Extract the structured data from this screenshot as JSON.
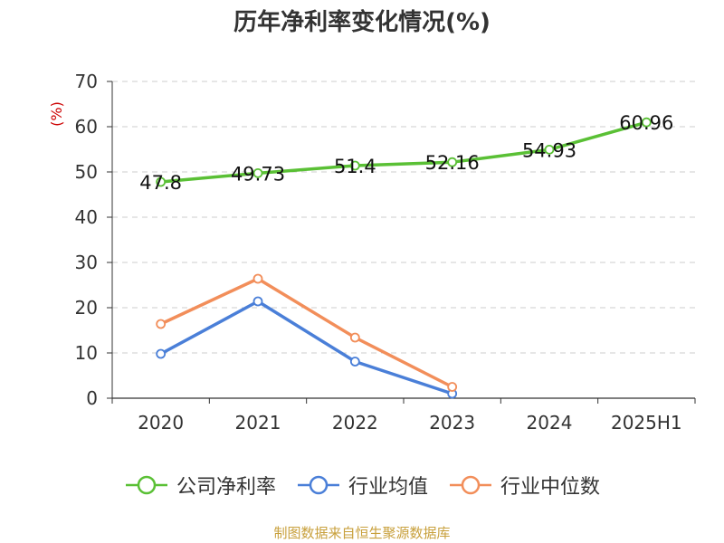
{
  "chart_data": {
    "type": "line",
    "title": "历年净利率变化情况(%)",
    "ylabel": "(%)",
    "xlabel": "",
    "categories": [
      "2020",
      "2021",
      "2022",
      "2023",
      "2024",
      "2025H1"
    ],
    "ylim": [
      0,
      70
    ],
    "yticks": [
      0,
      10,
      20,
      30,
      40,
      50,
      60,
      70
    ],
    "grid": true,
    "legend_position": "bottom",
    "series": [
      {
        "name": "公司净利率",
        "color": "#5ac035",
        "values": [
          47.8,
          49.73,
          51.4,
          52.16,
          54.93,
          60.96
        ],
        "labels": [
          "47.8",
          "49.73",
          "51.4",
          "52.16",
          "54.93",
          "60.96"
        ]
      },
      {
        "name": "行业均值",
        "color": "#4a7fd8",
        "values": [
          9.8,
          21.4,
          8.1,
          1.0,
          null,
          null
        ]
      },
      {
        "name": "行业中位数",
        "color": "#f28e5a",
        "values": [
          16.4,
          26.4,
          13.4,
          2.5,
          null,
          null
        ]
      }
    ]
  },
  "footer": {
    "source": "制图数据来自恒生聚源数据库"
  },
  "colors": {
    "axis_label": "#cc0000",
    "grid": "#cccccc",
    "text": "#333333"
  }
}
